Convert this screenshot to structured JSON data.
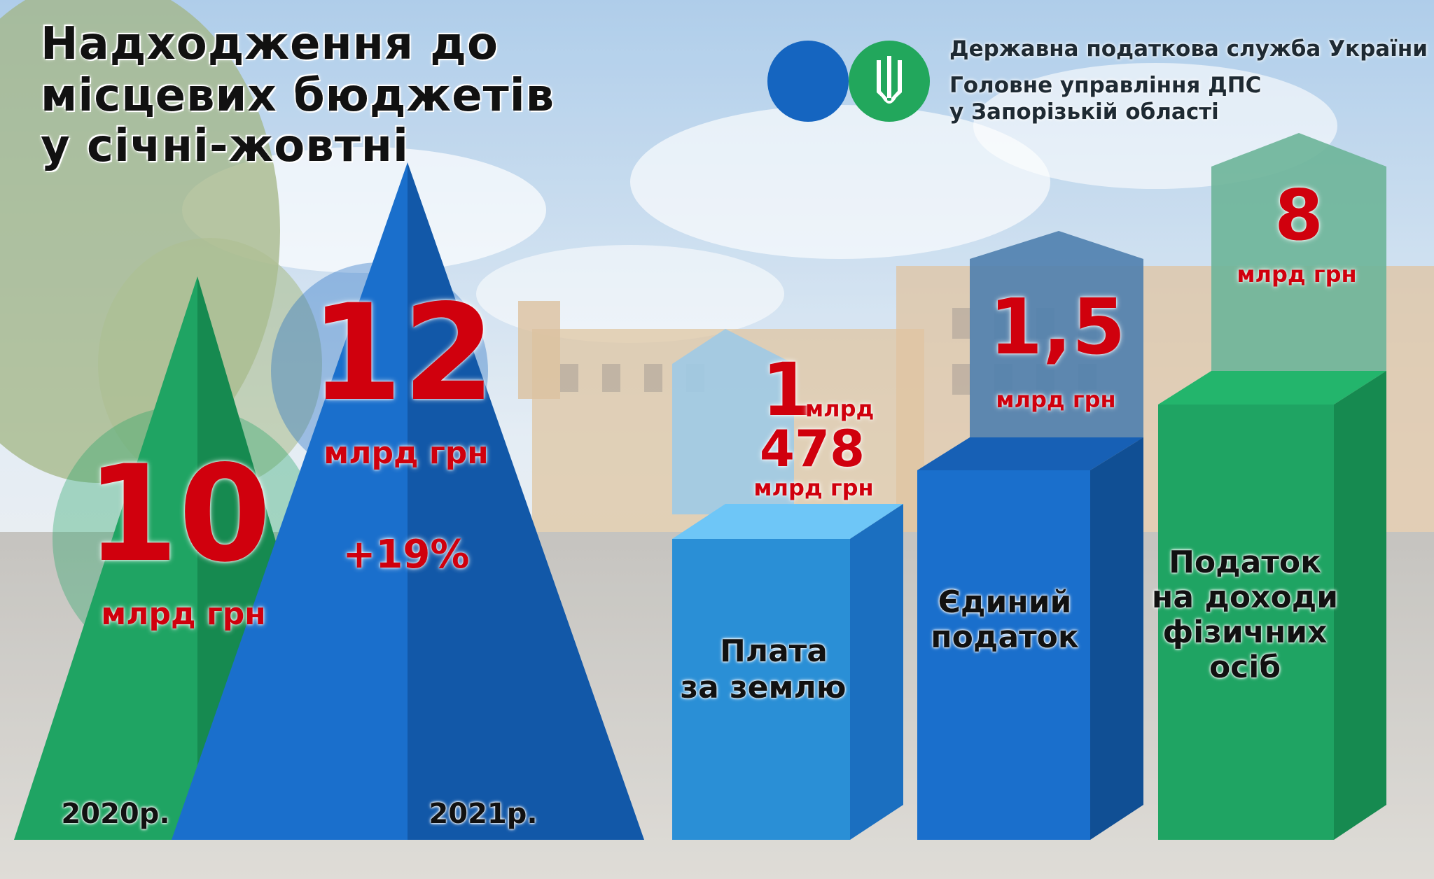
{
  "title": {
    "line1": "Надходження до",
    "line2": "місцевих бюджетів",
    "line3": "у січні-жовтні"
  },
  "org": {
    "line1": "Державна податкова служба України",
    "line2": "Головне управління ДПС",
    "line3": "у Запорізькій області"
  },
  "icons": {
    "emblem": "trident-emblem-icon"
  },
  "totals": {
    "y2020": {
      "value": "10",
      "unit": "млрд грн",
      "year": "2020р."
    },
    "y2021": {
      "value": "12",
      "unit": "млрд грн",
      "year": "2021р.",
      "growth": "+19%"
    }
  },
  "bars": [
    {
      "id": "land",
      "value_main": "1",
      "value_main_unit": "млрд",
      "value_sub": "478",
      "unit": "млрд грн",
      "label1": "Плата",
      "label2": "за землю"
    },
    {
      "id": "single",
      "value_main": "1,5",
      "unit": "млрд грн",
      "label1": "Єдиний",
      "label2": "податок"
    },
    {
      "id": "pit",
      "value_main": "8",
      "unit": "млрд грн",
      "label1": "Податок",
      "label2": "на доходи",
      "label3": "фізичних",
      "label4": "осіб"
    }
  ],
  "colors": {
    "blue": "#1565c0",
    "green": "#1fa463",
    "red": "#d0000d",
    "light_blue": "#64b5f6"
  }
}
